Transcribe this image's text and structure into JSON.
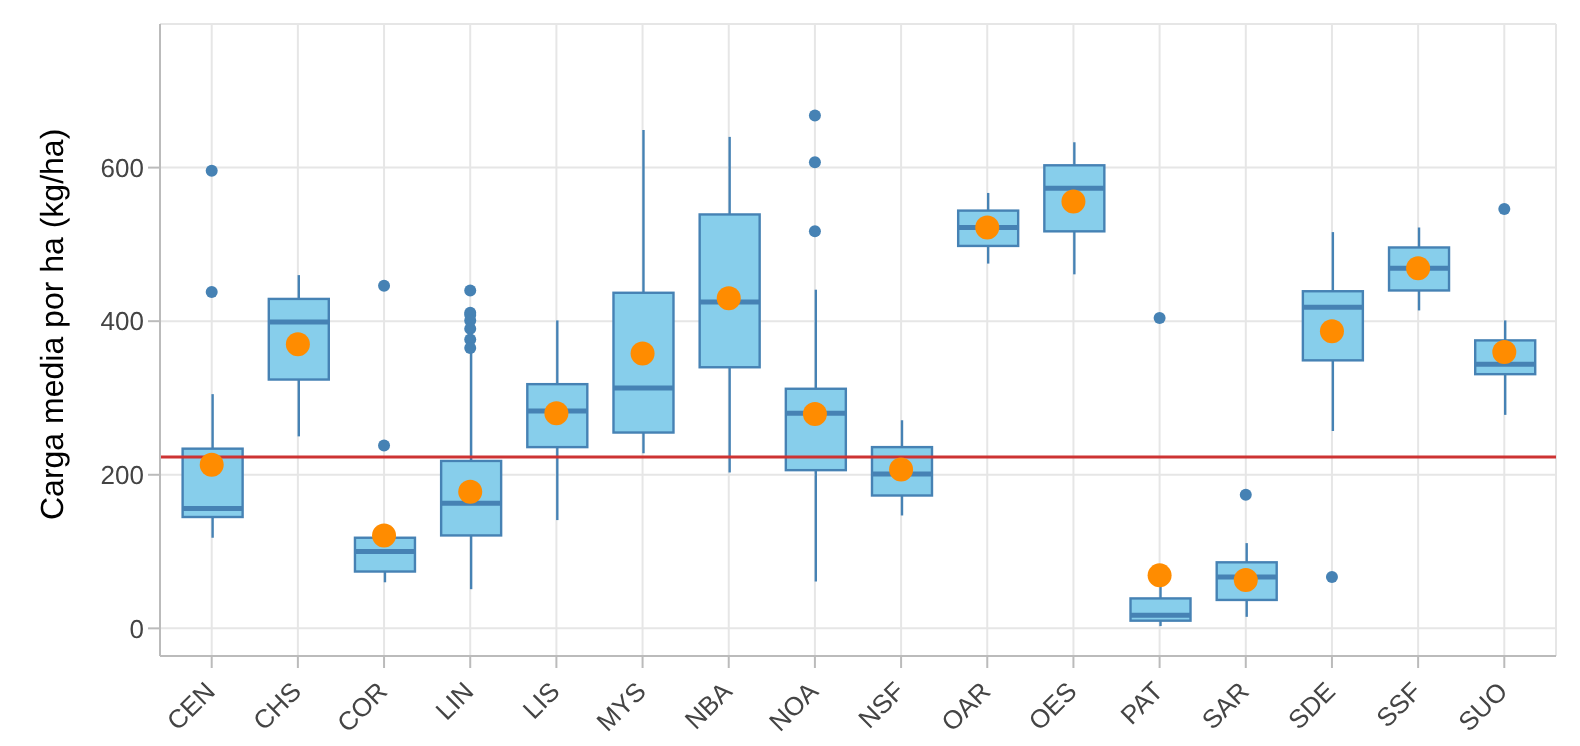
{
  "chart_data": {
    "type": "box",
    "ylabel": "Carga media por ha (kg/ha)",
    "categories": [
      "CEN",
      "CHS",
      "COR",
      "LIN",
      "LIS",
      "MYS",
      "NBA",
      "NOA",
      "NSF",
      "OAR",
      "OES",
      "PAT",
      "SAR",
      "SDE",
      "SSF",
      "SUO"
    ],
    "color": "#87ceeb",
    "boxes": [
      {
        "low": 118,
        "q1": 145,
        "median": 156,
        "q3": 234,
        "high": 305,
        "mean": 213,
        "outliers": [
          596,
          438
        ]
      },
      {
        "low": 250,
        "q1": 324,
        "median": 399,
        "q3": 429,
        "high": 460,
        "mean": 370
      },
      {
        "low": 60,
        "q1": 74,
        "median": 100,
        "q3": 118,
        "high": 118,
        "mean": 121,
        "outliers": [
          446,
          238
        ]
      },
      {
        "low": 51,
        "q1": 121,
        "median": 163,
        "q3": 218,
        "high": 363,
        "mean": 178,
        "outliers": [
          440,
          411,
          408,
          401,
          390,
          376,
          365
        ]
      },
      {
        "low": 141,
        "q1": 236,
        "median": 283,
        "q3": 318,
        "high": 401,
        "mean": 280
      },
      {
        "low": 228,
        "q1": 255,
        "median": 313,
        "q3": 437,
        "high": 649,
        "mean": 358
      },
      {
        "low": 203,
        "q1": 340,
        "median": 425,
        "q3": 539,
        "high": 640,
        "mean": 430
      },
      {
        "low": 61,
        "q1": 206,
        "median": 280,
        "q3": 312,
        "high": 441,
        "mean": 279,
        "outliers": [
          668,
          607,
          517
        ]
      },
      {
        "low": 147,
        "q1": 173,
        "median": 201,
        "q3": 236,
        "high": 271,
        "mean": 207
      },
      {
        "low": 475,
        "q1": 498,
        "median": 522,
        "q3": 544,
        "high": 567,
        "mean": 522
      },
      {
        "low": 461,
        "q1": 517,
        "median": 573,
        "q3": 603,
        "high": 633,
        "mean": 556
      },
      {
        "low": 3,
        "q1": 10,
        "median": 17,
        "q3": 39,
        "high": 55,
        "mean": 69,
        "outliers": [
          404
        ]
      },
      {
        "low": 15,
        "q1": 37,
        "median": 67,
        "q3": 86,
        "high": 111,
        "mean": 63,
        "outliers": [
          174
        ]
      },
      {
        "low": 257,
        "q1": 349,
        "median": 418,
        "q3": 439,
        "high": 516,
        "mean": 387,
        "outliers": [
          67
        ]
      },
      {
        "low": 414,
        "q1": 440,
        "median": 469,
        "q3": 496,
        "high": 522,
        "mean": 469
      },
      {
        "low": 278,
        "q1": 331,
        "median": 344,
        "q3": 375,
        "high": 401,
        "mean": 360,
        "outliers": [
          546
        ]
      }
    ],
    "ylim": [
      -36,
      787
    ],
    "yticks": [
      0,
      200,
      400,
      600
    ],
    "grid": true,
    "ref_lines": [
      {
        "axis": "y",
        "value": 223,
        "color": "#cd3333"
      }
    ]
  }
}
